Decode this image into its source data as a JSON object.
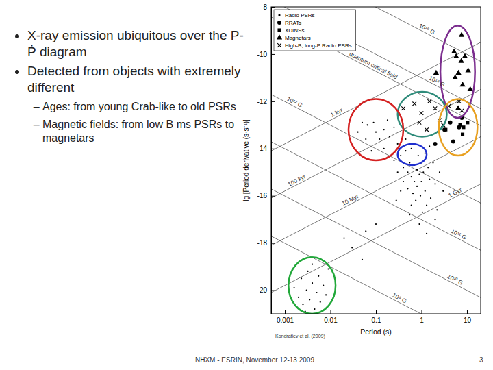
{
  "slide": {
    "bullets": [
      {
        "text": "X-ray emission ubiquitous over the P-Ṗ diagram"
      },
      {
        "text": "Detected from objects with extremely different",
        "items": [
          "Ages: from young Crab-like to old PSRs",
          "Magnetic fields: from low B ms PSRs to magnetars"
        ]
      }
    ],
    "footer": "NHXM - ESRIN, November 12-13 2009",
    "page": 3
  },
  "chart_data": {
    "type": "scatter",
    "xlabel": "Period (s)",
    "ylabel": "lg [Period derivative (s·s⁻¹)]",
    "source": "Kondratiev et al. (2009)",
    "log": "x",
    "grid": false,
    "legend": "upper left",
    "xlim": [
      0.0005,
      20
    ],
    "ylim": [
      -21,
      -8
    ],
    "xticks": [
      0.001,
      0.01,
      0.1,
      1,
      10
    ],
    "yticks": [
      -20,
      -18,
      -16,
      -14,
      -12,
      -10,
      -8
    ],
    "series": [
      {
        "name": "Radio PSRs",
        "color": "#000000",
        "marker": "dot",
        "x": [
          0.033,
          0.05,
          0.065,
          0.089,
          0.1,
          0.12,
          0.15,
          0.15,
          0.2,
          0.25,
          0.3,
          0.06,
          0.04,
          0.08,
          0.18,
          0.25,
          0.3,
          0.35,
          0.4,
          0.4,
          0.45,
          0.5,
          0.5,
          0.55,
          0.6,
          0.6,
          0.65,
          0.7,
          0.7,
          0.75,
          0.8,
          0.8,
          0.85,
          0.9,
          0.95,
          1.0,
          1.0,
          1.1,
          1.2,
          1.2,
          1.3,
          1.4,
          1.5,
          1.6,
          1.8,
          2.0,
          2.2,
          2.5,
          3.0,
          0.35,
          0.28,
          0.55,
          0.9,
          1.3,
          2.0,
          0.45,
          0.7,
          1.5,
          0.33,
          0.6,
          1.05,
          0.02,
          0.03,
          0.06,
          0.05,
          0.1,
          0.0016,
          0.002,
          0.0023,
          0.0025,
          0.003,
          0.0032,
          0.0035,
          0.004,
          0.0045,
          0.005,
          0.0055,
          0.006,
          0.007,
          0.008,
          0.009,
          0.004,
          0.0028
        ],
        "values": [
          -12.4,
          -12.9,
          -13.0,
          -12.9,
          -13.3,
          -13.6,
          -13.2,
          -14.0,
          -13.5,
          -13.1,
          -13.8,
          -13.6,
          -13.3,
          -14.1,
          -12.8,
          -14.5,
          -15.0,
          -14.3,
          -15.4,
          -14.8,
          -14.1,
          -15.0,
          -15.7,
          -14.6,
          -15.2,
          -14.0,
          -15.9,
          -14.7,
          -15.4,
          -16.2,
          -14.9,
          -15.6,
          -14.3,
          -15.1,
          -16.0,
          -14.6,
          -15.4,
          -15.0,
          -14.2,
          -15.8,
          -16.4,
          -14.8,
          -15.3,
          -16.1,
          -14.6,
          -15.5,
          -16.6,
          -15.0,
          -15.8,
          -15.8,
          -16.2,
          -16.8,
          -17.2,
          -17.6,
          -17.0,
          -13.6,
          -13.8,
          -13.9,
          -14.0,
          -16.4,
          -16.7,
          -17.8,
          -18.2,
          -17.5,
          -18.7,
          -17.2,
          -19.9,
          -20.3,
          -19.5,
          -20.6,
          -20.0,
          -19.2,
          -20.4,
          -19.7,
          -20.8,
          -20.1,
          -19.4,
          -20.5,
          -19.8,
          -20.2,
          -19.1,
          -18.9,
          -20.9
        ]
      },
      {
        "name": "RRATs",
        "color": "#000000",
        "marker": "circle",
        "x": [
          3.2,
          4.3,
          6.7,
          5.0,
          2.0,
          7.7
        ],
        "values": [
          -13.2,
          -12.9,
          -13.1,
          -13.7,
          -13.8,
          -12.7
        ]
      },
      {
        "name": "XDINSs",
        "color": "#000000",
        "marker": "square",
        "x": [
          3.4,
          7.1,
          8.4,
          10.3,
          8.0
        ],
        "values": [
          -13.2,
          -13.0,
          -13.1,
          -12.9,
          -13.4
        ]
      },
      {
        "name": "Magnetars",
        "color": "#000000",
        "marker": "triangle",
        "x": [
          2.1,
          5.5,
          6.5,
          7.5,
          5.8,
          9.0,
          11.8,
          8.0,
          10.6,
          5.2,
          7.6,
          6.4
        ],
        "values": [
          -10.8,
          -11.0,
          -10.8,
          -10.3,
          -10.1,
          -10.1,
          -11.5,
          -11.3,
          -10.7,
          -9.9,
          -9.2,
          -12.3
        ]
      },
      {
        "name": "High-B, long-P Radio PSRs",
        "color": "#000000",
        "marker": "x",
        "x": [
          0.4,
          0.7,
          1.0,
          1.5,
          2.0,
          2.5,
          4.0,
          6.7,
          0.9,
          1.3,
          3.0,
          7.7
        ],
        "values": [
          -12.3,
          -12.1,
          -12.5,
          -12.0,
          -12.3,
          -12.8,
          -12.2,
          -12.0,
          -12.9,
          -13.2,
          -13.0,
          -12.4
        ]
      }
    ],
    "reference_lines": [
      {
        "label": "10¹⁵ G",
        "x": [
          0.0005,
          20
        ],
        "y": [
          -5.71,
          -10.31
        ],
        "label_x": 1.2
      },
      {
        "label": "10¹⁴ G",
        "x": [
          0.0005,
          20
        ],
        "y": [
          -7.71,
          -12.31
        ],
        "label_x": 2
      },
      {
        "label": "quantum critical field",
        "x": [
          0.0005,
          20
        ],
        "y": [
          -8.43,
          -13.03
        ],
        "label_x": 0.08
      },
      {
        "label": "10¹² G",
        "x": [
          0.0005,
          20
        ],
        "y": [
          -11.71,
          -16.31
        ],
        "label_x": 0.0015
      },
      {
        "label": "10¹¹ G",
        "x": [
          0.0005,
          20
        ],
        "y": [
          -13.71,
          -18.31
        ],
        "label_x": 6
      },
      {
        "label": "10¹⁰ G",
        "x": [
          0.0005,
          20
        ],
        "y": [
          -15.71,
          -20.31
        ],
        "label_x": 5
      },
      {
        "label": "10⁹ G",
        "x": [
          0.0005,
          20
        ],
        "y": [
          -17.71,
          -22.31
        ],
        "label_x": 0.3
      },
      {
        "label": "1 kyr",
        "x": [
          0.0005,
          20
        ],
        "y": [
          -14.1,
          -9.5
        ],
        "label_x": 0.015
      },
      {
        "label": "100 kyr",
        "x": [
          0.0005,
          20
        ],
        "y": [
          -16.1,
          -11.5
        ],
        "label_x": 0.002
      },
      {
        "label": "10 Myr",
        "x": [
          0.0005,
          20
        ],
        "y": [
          -18.1,
          -13.5
        ],
        "label_x": 0.03
      },
      {
        "label": "1 Gyr",
        "x": [
          0.0005,
          20
        ],
        "y": [
          -20.1,
          -15.5
        ],
        "label_x": 6
      }
    ],
    "regions": [
      {
        "color": "#7b2d8e",
        "x": [
          2.6,
          15
        ],
        "y": [
          -8.8,
          -12.7
        ]
      },
      {
        "color": "#2e8b7a",
        "x": [
          0.3,
          3.6
        ],
        "y": [
          -11.6,
          -13.5
        ]
      },
      {
        "color": "#e8a020",
        "x": [
          2.4,
          17
        ],
        "y": [
          -11.9,
          -14.3
        ]
      },
      {
        "color": "#d42020",
        "x": [
          0.025,
          0.4
        ],
        "y": [
          -11.9,
          -14.5
        ]
      },
      {
        "color": "#1f2fcf",
        "x": [
          0.3,
          1.3
        ],
        "y": [
          -13.8,
          -14.7
        ]
      },
      {
        "color": "#22a83a",
        "x": [
          0.0012,
          0.013
        ],
        "y": [
          -18.6,
          -21.0
        ]
      }
    ]
  }
}
